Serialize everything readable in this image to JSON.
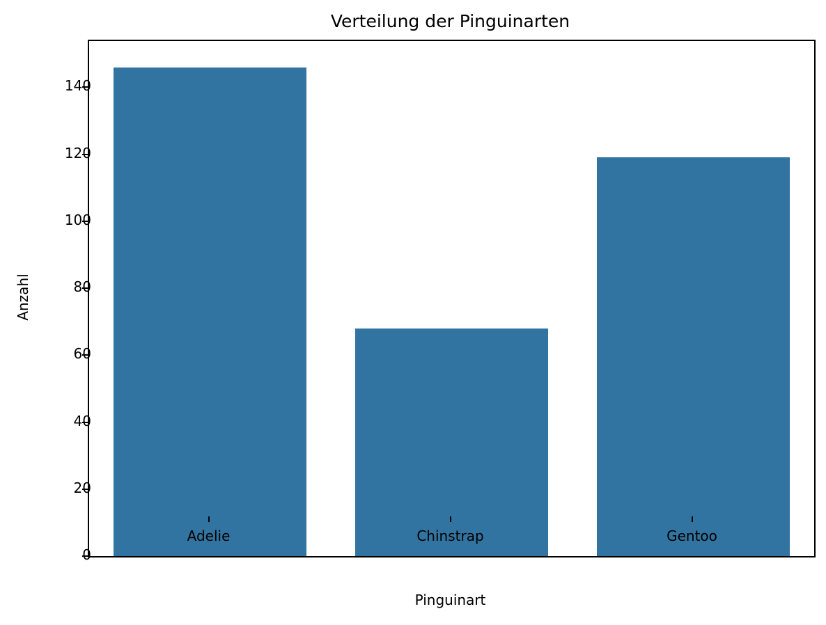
{
  "chart_data": {
    "type": "bar",
    "title": "Verteilung der Pinguinarten",
    "xlabel": "Pinguinart",
    "ylabel": "Anzahl",
    "categories": [
      "Adelie",
      "Chinstrap",
      "Gentoo"
    ],
    "values": [
      146,
      68,
      119
    ],
    "ylim": [
      0,
      153.8
    ],
    "yticks": [
      0,
      20,
      40,
      60,
      80,
      100,
      120,
      140
    ],
    "bar_color": "#3274A1",
    "bar_width_fraction": 0.8,
    "grid": false,
    "legend": null,
    "spine_color": "#000000",
    "background_color": "#FFFFFF"
  }
}
